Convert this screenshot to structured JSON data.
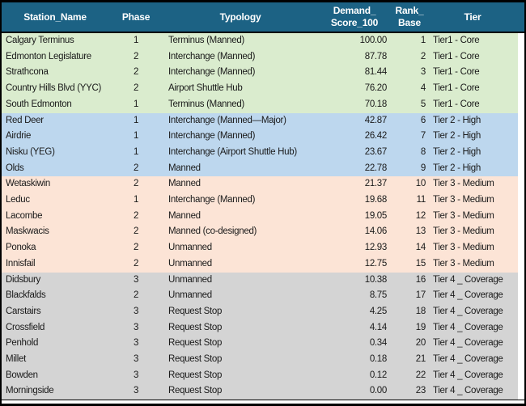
{
  "styles": {
    "header_bg": "#1C6284",
    "header_text": "#FFFFFF",
    "body_text": "#1A1A1A",
    "border": "#000000"
  },
  "chart_data": {
    "type": "table",
    "title": "Station ranking table",
    "columns": [
      {
        "key": "station",
        "label": "Station_Name"
      },
      {
        "key": "phase",
        "label": "Phase"
      },
      {
        "key": "typology",
        "label": "Typology"
      },
      {
        "key": "demand",
        "label": "Demand_\nScore_100"
      },
      {
        "key": "rank",
        "label": "Rank_\nBase"
      },
      {
        "key": "tier",
        "label": "Tier"
      }
    ],
    "tier_groups": {
      "tier1": {
        "label": "Tier1 - Core",
        "color": "#DAECCE"
      },
      "tier2": {
        "label": "Tier 2 - High",
        "color": "#BDD7EE"
      },
      "tier3": {
        "label": "Tier 3 - Medium",
        "color": "#FCE4D6"
      },
      "tier4": {
        "label": "Tier 4 _ Coverage",
        "color": "#D4D4D4"
      }
    },
    "rows": [
      {
        "station": "Calgary Terminus",
        "phase": "1",
        "typology": "Terminus (Manned)",
        "demand": "100.00",
        "rank": "1",
        "tier": "Tier1 - Core",
        "group": "tier1"
      },
      {
        "station": "Edmonton Legislature",
        "phase": "2",
        "typology": "Interchange (Manned)",
        "demand": "87.78",
        "rank": "2",
        "tier": "Tier1 - Core",
        "group": "tier1"
      },
      {
        "station": "Strathcona",
        "phase": "2",
        "typology": "Interchange (Manned)",
        "demand": "81.44",
        "rank": "3",
        "tier": "Tier1 - Core",
        "group": "tier1"
      },
      {
        "station": "Country Hills Blvd (YYC)",
        "phase": "2",
        "typology": "Airport Shuttle Hub",
        "demand": "76.20",
        "rank": "4",
        "tier": "Tier1 - Core",
        "group": "tier1"
      },
      {
        "station": "South Edmonton",
        "phase": "1",
        "typology": "Terminus (Manned)",
        "demand": "70.18",
        "rank": "5",
        "tier": "Tier1 - Core",
        "group": "tier1"
      },
      {
        "station": "Red Deer",
        "phase": "1",
        "typology": "Interchange (Manned—Major)",
        "demand": "42.87",
        "rank": "6",
        "tier": "Tier 2 - High",
        "group": "tier2"
      },
      {
        "station": "Airdrie",
        "phase": "1",
        "typology": "Interchange (Manned)",
        "demand": "26.42",
        "rank": "7",
        "tier": "Tier 2 - High",
        "group": "tier2"
      },
      {
        "station": "Nisku (YEG)",
        "phase": "1",
        "typology": "Interchange (Airport Shuttle Hub)",
        "demand": "23.67",
        "rank": "8",
        "tier": "Tier 2 - High",
        "group": "tier2"
      },
      {
        "station": "Olds",
        "phase": "2",
        "typology": "Manned",
        "demand": "22.78",
        "rank": "9",
        "tier": "Tier 2 - High",
        "group": "tier2"
      },
      {
        "station": "Wetaskiwin",
        "phase": "2",
        "typology": "Manned",
        "demand": "21.37",
        "rank": "10",
        "tier": "Tier 3 - Medium",
        "group": "tier3"
      },
      {
        "station": "Leduc",
        "phase": "1",
        "typology": "Interchange (Manned)",
        "demand": "19.68",
        "rank": "11",
        "tier": "Tier 3 - Medium",
        "group": "tier3"
      },
      {
        "station": "Lacombe",
        "phase": "2",
        "typology": "Manned",
        "demand": "19.05",
        "rank": "12",
        "tier": "Tier 3 - Medium",
        "group": "tier3"
      },
      {
        "station": "Maskwacis",
        "phase": "2",
        "typology": "Manned (co-designed)",
        "demand": "14.06",
        "rank": "13",
        "tier": "Tier 3 - Medium",
        "group": "tier3"
      },
      {
        "station": "Ponoka",
        "phase": "2",
        "typology": "Unmanned",
        "demand": "12.93",
        "rank": "14",
        "tier": "Tier 3 - Medium",
        "group": "tier3"
      },
      {
        "station": "Innisfail",
        "phase": "2",
        "typology": "Unmanned",
        "demand": "12.75",
        "rank": "15",
        "tier": "Tier 3 - Medium",
        "group": "tier3"
      },
      {
        "station": "Didsbury",
        "phase": "3",
        "typology": "Unmanned",
        "demand": "10.38",
        "rank": "16",
        "tier": "Tier 4 _ Coverage",
        "group": "tier4"
      },
      {
        "station": "Blackfalds",
        "phase": "2",
        "typology": "Unmanned",
        "demand": "8.75",
        "rank": "17",
        "tier": "Tier 4 _ Coverage",
        "group": "tier4"
      },
      {
        "station": "Carstairs",
        "phase": "3",
        "typology": "Request Stop",
        "demand": "4.25",
        "rank": "18",
        "tier": "Tier 4 _ Coverage",
        "group": "tier4"
      },
      {
        "station": "Crossfield",
        "phase": "3",
        "typology": "Request Stop",
        "demand": "4.14",
        "rank": "19",
        "tier": "Tier 4 _ Coverage",
        "group": "tier4"
      },
      {
        "station": "Penhold",
        "phase": "3",
        "typology": "Request Stop",
        "demand": "0.34",
        "rank": "20",
        "tier": "Tier 4 _ Coverage",
        "group": "tier4"
      },
      {
        "station": "Millet",
        "phase": "3",
        "typology": "Request Stop",
        "demand": "0.18",
        "rank": "21",
        "tier": "Tier 4 _ Coverage",
        "group": "tier4"
      },
      {
        "station": "Bowden",
        "phase": "3",
        "typology": "Request Stop",
        "demand": "0.12",
        "rank": "22",
        "tier": "Tier 4 _ Coverage",
        "group": "tier4"
      },
      {
        "station": "Morningside",
        "phase": "3",
        "typology": "Request Stop",
        "demand": "0.00",
        "rank": "23",
        "tier": "Tier 4 _ Coverage",
        "group": "tier4"
      }
    ]
  }
}
